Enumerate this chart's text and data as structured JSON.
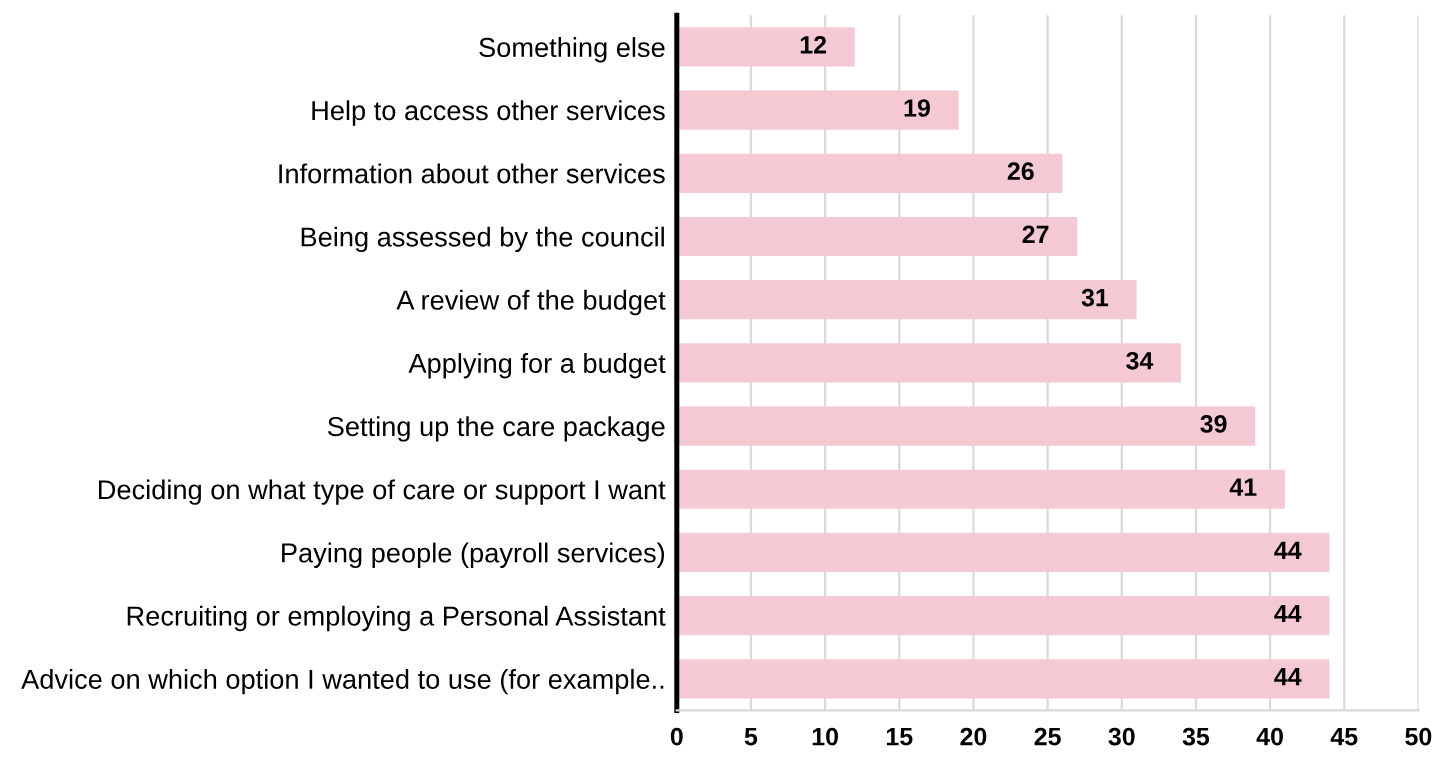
{
  "chart_data": {
    "type": "bar",
    "orientation": "horizontal",
    "categories": [
      "Something else",
      "Help to access other services",
      "Information about other services",
      "Being assessed by the council",
      "A review of the budget",
      "Applying for a budget",
      "Setting up the care package",
      "Deciding on what type of care or support I want",
      "Paying people (payroll services)",
      "Recruiting or employing a Personal Assistant",
      "Advice on which option I wanted to use (for example.."
    ],
    "values": [
      12,
      19,
      26,
      27,
      31,
      34,
      39,
      41,
      44,
      44,
      44
    ],
    "color": "#f4c9d4",
    "xlim": [
      0,
      50
    ],
    "xticks": [
      0,
      5,
      10,
      15,
      20,
      25,
      30,
      35,
      40,
      45,
      50
    ],
    "grid": "x",
    "data_labels": true
  }
}
